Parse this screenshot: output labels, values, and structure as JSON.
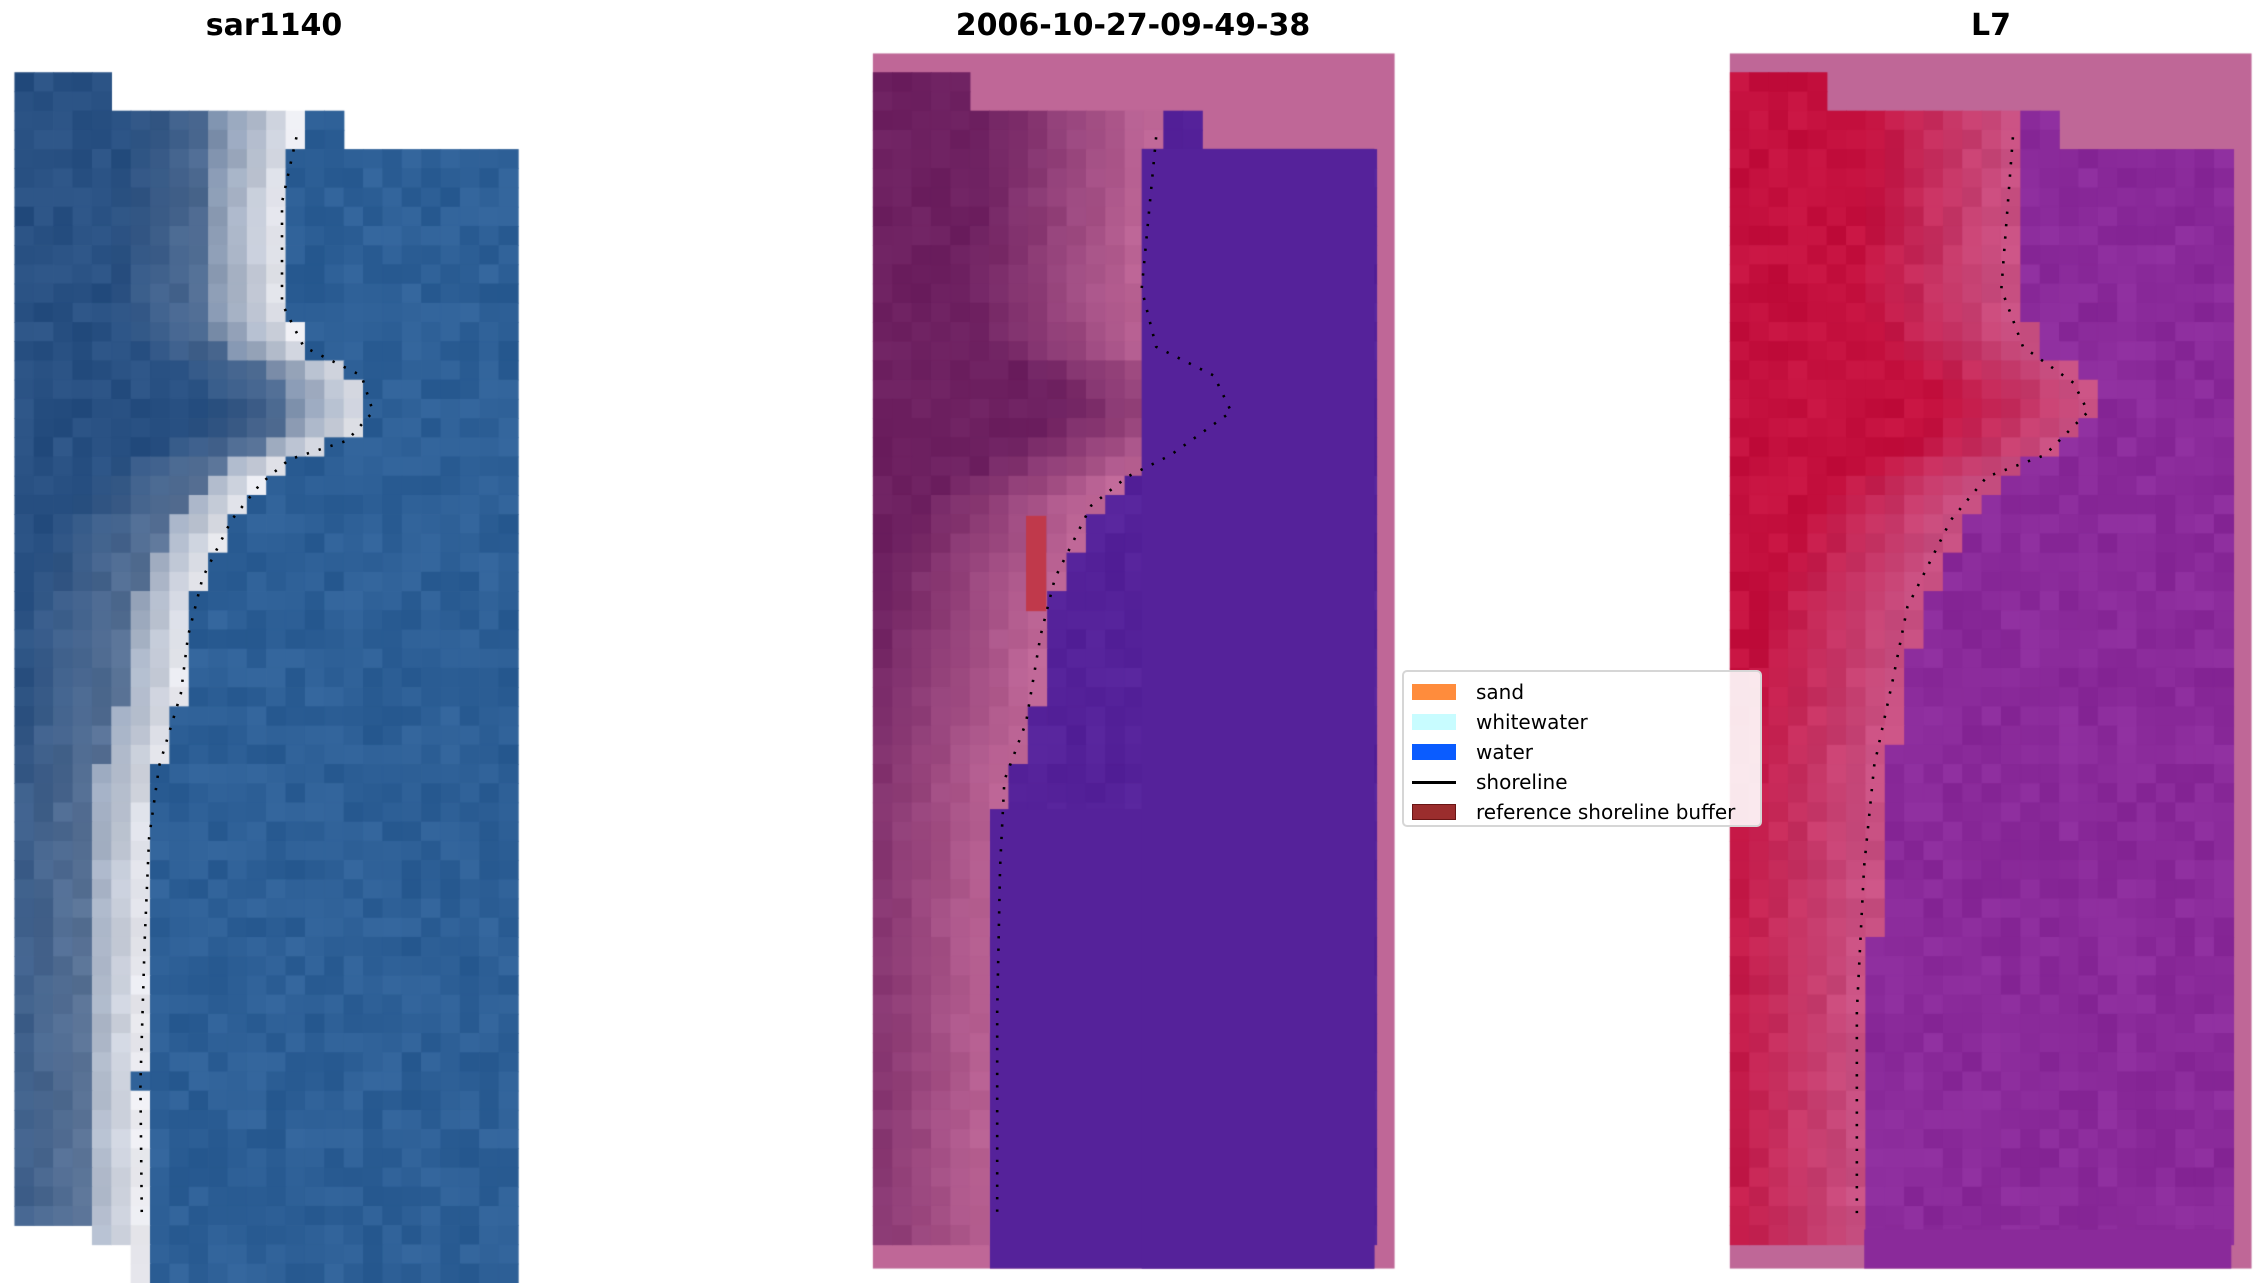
{
  "panels": [
    {
      "title": "sar1140"
    },
    {
      "title": "2006-10-27-09-49-38"
    },
    {
      "title": "L7"
    }
  ],
  "legend": {
    "items": [
      {
        "label": "sand",
        "color": "#ff8c3c",
        "kind": "patch"
      },
      {
        "label": "whitewater",
        "color": "#c8fcff",
        "kind": "patch"
      },
      {
        "label": "water",
        "color": "#0a5cff",
        "kind": "patch"
      },
      {
        "label": "shoreline",
        "color": "#000000",
        "kind": "line"
      },
      {
        "label": "reference shoreline buffer",
        "color": "#9b2d2d",
        "kind": "patch"
      }
    ]
  },
  "colors": {
    "rgb_water": "#2d5f96",
    "class_water": "#55229a",
    "class_land": "#6d2060",
    "frame_pink": "#bf6797",
    "buffer_red": "#c0394b",
    "l7_red": "#c4103e",
    "l7_purple": "#8a2a9a"
  }
}
